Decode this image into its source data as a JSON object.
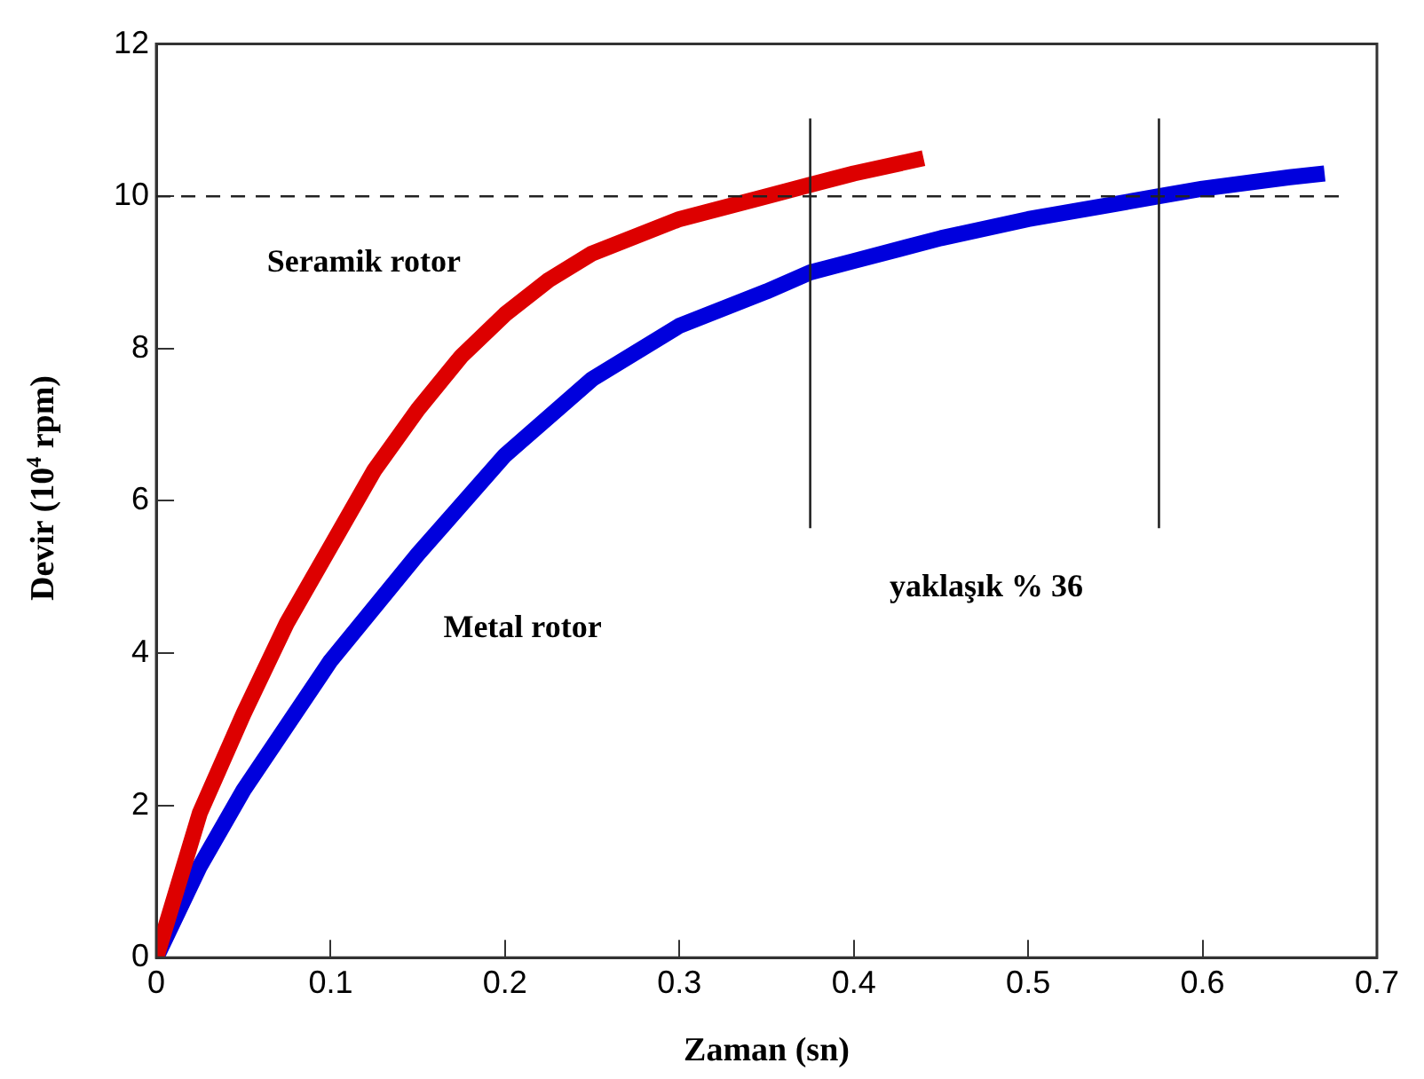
{
  "chart_data": {
    "type": "line",
    "xlabel": "Zaman (sn)",
    "ylabel": "Devir (10$^{4}$ rpm)",
    "xlim": [
      0,
      0.7
    ],
    "xticks": [
      0,
      0.1,
      0.2,
      0.3,
      0.4,
      0.5,
      0.6,
      0.7
    ],
    "ylim": [
      0,
      12
    ],
    "yticks": [
      0,
      2,
      4,
      6,
      8,
      10,
      12
    ],
    "grid": false,
    "legend": false,
    "marker": "none",
    "line_style": "solid",
    "series": [
      {
        "name": "Seramik rotor",
        "color": "#dd0000",
        "x": [
          0,
          0.025,
          0.05,
          0.075,
          0.1,
          0.125,
          0.15,
          0.175,
          0.2,
          0.225,
          0.25,
          0.3,
          0.35,
          0.375,
          0.4,
          0.44
        ],
        "values": [
          0,
          1.9,
          3.2,
          4.4,
          5.4,
          6.4,
          7.2,
          7.9,
          8.45,
          8.9,
          9.25,
          9.7,
          10.0,
          10.15,
          10.3,
          10.5
        ]
      },
      {
        "name": "Metal rotor",
        "color": "#0000dd",
        "x": [
          0,
          0.025,
          0.05,
          0.1,
          0.15,
          0.2,
          0.25,
          0.3,
          0.35,
          0.375,
          0.4,
          0.45,
          0.5,
          0.55,
          0.575,
          0.6,
          0.65,
          0.67
        ],
        "values": [
          0,
          1.2,
          2.2,
          3.9,
          5.3,
          6.6,
          7.6,
          8.3,
          8.75,
          9.0,
          9.15,
          9.45,
          9.7,
          9.9,
          10.0,
          10.1,
          10.25,
          10.3
        ]
      }
    ],
    "ref_lines": [
      {
        "axis": "y",
        "value": 10,
        "line_style": "dashed"
      },
      {
        "axis": "x",
        "value": 0.375,
        "line_style": "solid"
      },
      {
        "axis": "x",
        "value": 0.575,
        "line_style": "solid"
      }
    ],
    "annotations": [
      "yaklaşık % 36"
    ]
  }
}
